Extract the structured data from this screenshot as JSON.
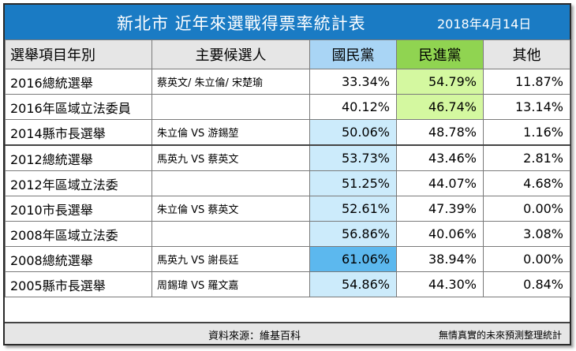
{
  "title": "新北市  近年來選戰得票率統計表",
  "date": "2018年4月14日",
  "header": {
    "election": "選舉項目年別",
    "candidates": "主要候選人",
    "kmt": "國民黨",
    "dpp": "民進黨",
    "other": "其他"
  },
  "colors": {
    "title_bar": "#1a7bc4",
    "kmt_header": "#a9d5f5",
    "dpp_header": "#90d451",
    "kmt_highlight": "#ccebfb",
    "kmt_highlight_strong": "#5cb8ee",
    "dpp_highlight": "#d4f8a0",
    "neutral_header": "#e6e6e6"
  },
  "rows": [
    {
      "election": "2016總統選舉",
      "candidates": "蔡英文/ 朱立倫/ 宋楚瑜",
      "kmt": "33.34%",
      "dpp": "54.79%",
      "other": "11.87%"
    },
    {
      "election": "2016年區域立法委員",
      "candidates": "",
      "kmt": "40.12%",
      "dpp": "46.74%",
      "other": "13.14%"
    },
    {
      "election": "2014縣市長選舉",
      "candidates": "朱立倫 VS 游錫堃",
      "kmt": "50.06%",
      "dpp": "48.78%",
      "other": "1.16%"
    },
    {
      "election": "2012總統選舉",
      "candidates": "馬英九 VS 蔡英文",
      "kmt": "53.73%",
      "dpp": "43.46%",
      "other": "2.81%"
    },
    {
      "election": "2012年區域立法委",
      "candidates": "",
      "kmt": "51.25%",
      "dpp": "44.07%",
      "other": "4.68%"
    },
    {
      "election": "2010市長選舉",
      "candidates": "朱立倫 VS 蔡英文",
      "kmt": "52.61%",
      "dpp": "47.39%",
      "other": "0.00%"
    },
    {
      "election": "2008年區域立法委",
      "candidates": "",
      "kmt": "56.86%",
      "dpp": "40.06%",
      "other": "3.08%"
    },
    {
      "election": "2008總統選舉",
      "candidates": "馬英九 VS 謝長廷",
      "kmt": "61.06%",
      "dpp": "38.94%",
      "other": "0.00%"
    },
    {
      "election": "2005縣市長選舉",
      "candidates": "周錫瑋 VS 羅文嘉",
      "kmt": "54.86%",
      "dpp": "44.30%",
      "other": "0.84%"
    }
  ],
  "footer": {
    "source": "資料來源：維基百科",
    "credit": "無情真實的未來預測整理統計"
  }
}
